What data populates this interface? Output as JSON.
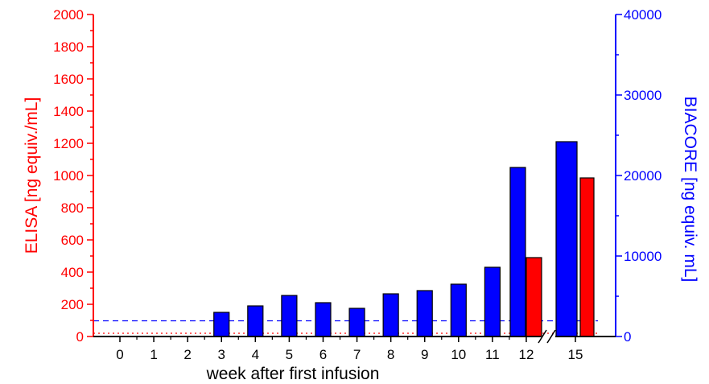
{
  "chart_data": {
    "type": "bar",
    "xlabel": "week after first infusion",
    "categories": [
      "0",
      "1",
      "2",
      "3",
      "4",
      "5",
      "6",
      "7",
      "8",
      "9",
      "10",
      "11",
      "12",
      "15"
    ],
    "y_left": {
      "label": "ELISA [ng equiv./mL]",
      "range": [
        0,
        2000
      ],
      "ticks": [
        "0",
        "200",
        "400",
        "600",
        "800",
        "1000",
        "1200",
        "1400",
        "1600",
        "1800",
        "2000"
      ],
      "color": "#ff0000"
    },
    "y_right": {
      "label": "BIACORE [ng equiv. mL]",
      "range": [
        0,
        40000
      ],
      "ticks": [
        "0",
        "10000",
        "20000",
        "30000",
        "40000"
      ],
      "color": "#0000ff"
    },
    "series": [
      {
        "axis": "right",
        "color": "#0000ff",
        "values": [
          null,
          null,
          null,
          3000,
          3800,
          5100,
          4200,
          3500,
          5300,
          5700,
          6500,
          8600,
          21000,
          24200
        ]
      },
      {
        "axis": "left",
        "color": "#ff0000",
        "values": [
          null,
          null,
          null,
          null,
          null,
          null,
          null,
          null,
          null,
          null,
          null,
          null,
          490,
          985
        ]
      }
    ],
    "reference_lines": [
      {
        "axis": "right",
        "value": 1950,
        "color": "#0000ff",
        "style": "dashed"
      },
      {
        "axis": "left",
        "value": 20,
        "color": "#ff0000",
        "style": "dotted"
      }
    ],
    "axis_break_after": "12"
  }
}
